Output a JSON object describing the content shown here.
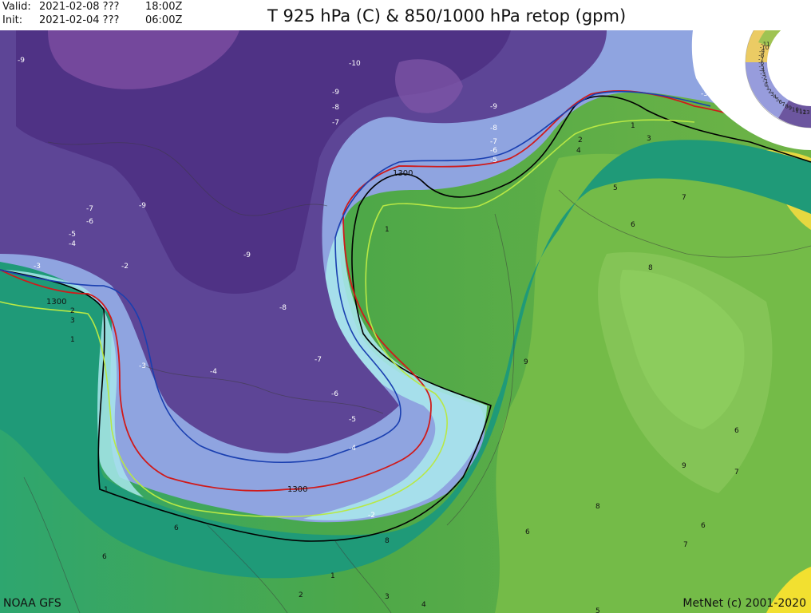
{
  "header": {
    "valid_label": "Valid:",
    "valid_date": "2021-02-08 ???",
    "valid_time": "18:00Z",
    "init_label": "Init:",
    "init_date": "2021-02-04 ???",
    "init_time": "06:00Z",
    "title": "T 925 hPa (C) & 850/1000 hPa retop (gpm)"
  },
  "footer": {
    "left": "NOAA GFS",
    "right": "MetNet (c) 2001-2020"
  },
  "colors": {
    "cold_extreme": "#6a3a8c",
    "cold": "#5a3e8f",
    "cool": "#7f86d6",
    "near_zero": "#a8e6ec",
    "mild": "#1f9c6a",
    "warm": "#5ea83a",
    "warmer": "#7fbf4a",
    "hot": "#f2e030",
    "isoline_0c": "#000000",
    "isoline_1300_red": "#d01a1a",
    "isoline_1300_blue": "#1a3fb0",
    "isoline_lime": "#b8e845"
  },
  "map": {
    "thickness_label": "1300",
    "temperature_labels": [
      "-9",
      "-10",
      "-9",
      "-8",
      "-7",
      "-9",
      "-8",
      "-7",
      "-6",
      "-5",
      "-3",
      "-7",
      "-6",
      "-5",
      "-4",
      "-9",
      "-9",
      "-3",
      "-2",
      "-8",
      "-7",
      "-6",
      "-5",
      "-4",
      "-3",
      "-4",
      "-2",
      "1",
      "2",
      "3",
      "1",
      "2",
      "1",
      "3",
      "4",
      "5",
      "7",
      "6",
      "8",
      "9",
      "6",
      "9",
      "7",
      "8",
      "6",
      "6",
      "7",
      "6",
      "8",
      "1",
      "2",
      "3",
      "4",
      "5",
      "6",
      "1",
      "2"
    ],
    "legend_wheel": {
      "labels": [
        "13",
        "12",
        "11",
        "10",
        "9",
        "8",
        "7",
        "6",
        "5",
        "4",
        "3",
        "2",
        "1",
        "0",
        "-1",
        "-2",
        "-3",
        "-4",
        "-5",
        "-6",
        "-7",
        "-8",
        "-9",
        "-10",
        "-11"
      ]
    }
  }
}
